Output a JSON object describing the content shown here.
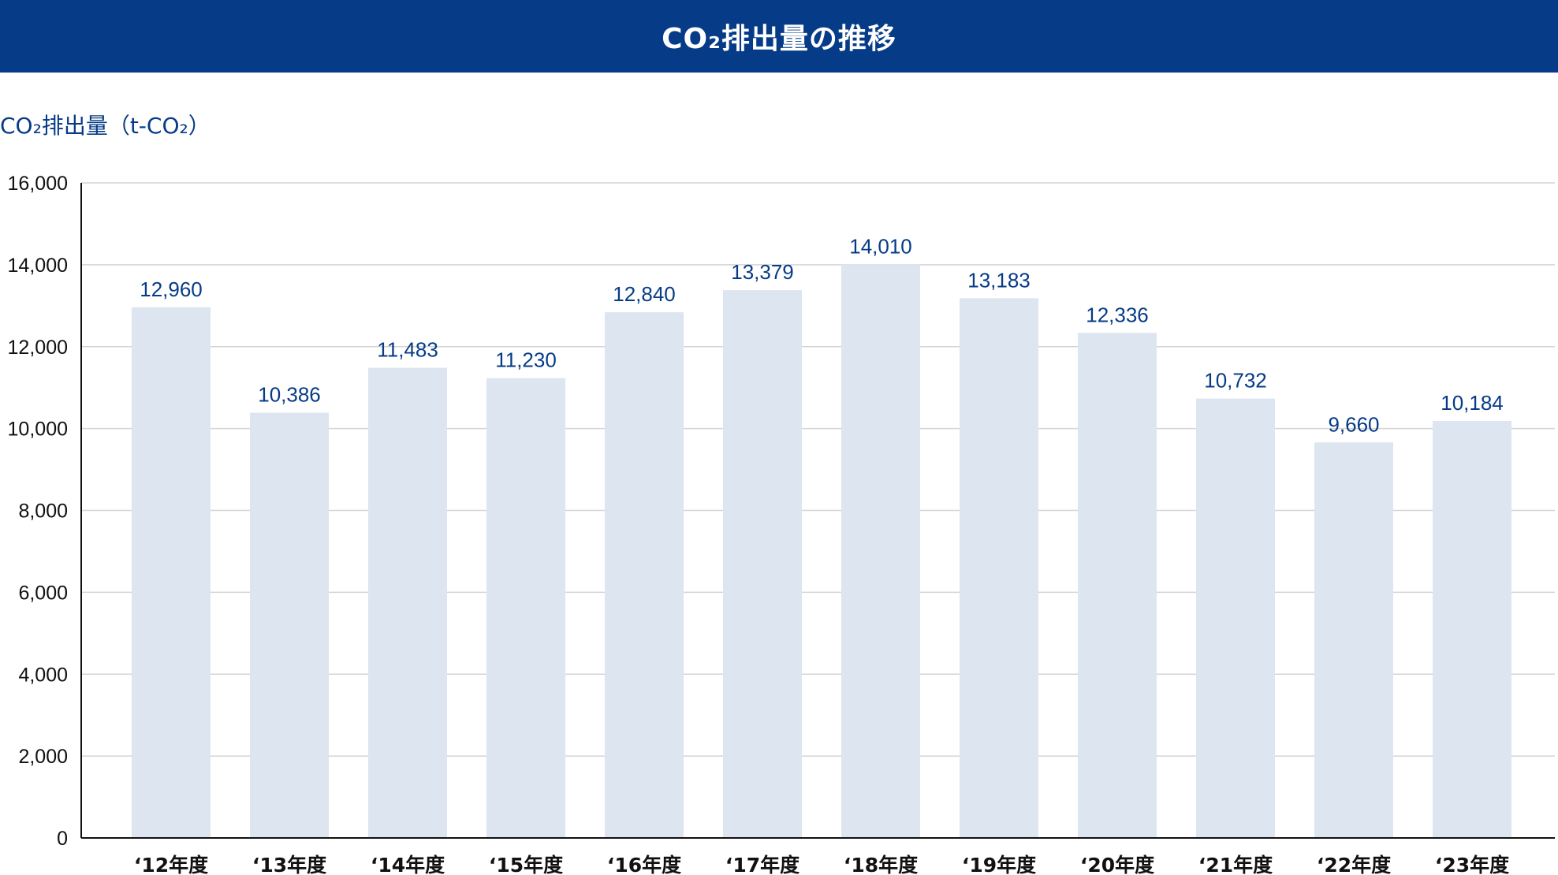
{
  "header": {
    "title": "CO₂排出量の推移"
  },
  "colors": {
    "header_bg": "#063b87",
    "bar": "#dde5f1",
    "data_label": "#063b87",
    "grid": "#d4d4d4",
    "axis": "#111111"
  },
  "chart_data": {
    "type": "bar",
    "title": "CO₂排出量の推移",
    "ylabel": "CO₂排出量（t-CO₂）",
    "xlabel": "",
    "categories": [
      "‘12年度",
      "‘13年度",
      "‘14年度",
      "‘15年度",
      "‘16年度",
      "‘17年度",
      "‘18年度",
      "‘19年度",
      "‘20年度",
      "‘21年度",
      "‘22年度",
      "‘23年度"
    ],
    "values": [
      12960,
      10386,
      11483,
      11230,
      12840,
      13379,
      14010,
      13183,
      12336,
      10732,
      9660,
      10184
    ],
    "value_labels": [
      "12,960",
      "10,386",
      "11,483",
      "11,230",
      "12,840",
      "13,379",
      "14,010",
      "13,183",
      "12,336",
      "10,732",
      "9,660",
      "10,184"
    ],
    "ylim": [
      0,
      16000
    ],
    "yticks": [
      0,
      2000,
      4000,
      6000,
      8000,
      10000,
      12000,
      14000,
      16000
    ],
    "ytick_labels": [
      "0",
      "2,000",
      "4,000",
      "6,000",
      "8,000",
      "10,000",
      "12,000",
      "14,000",
      "16,000"
    ],
    "grid": true,
    "legend": "none"
  }
}
